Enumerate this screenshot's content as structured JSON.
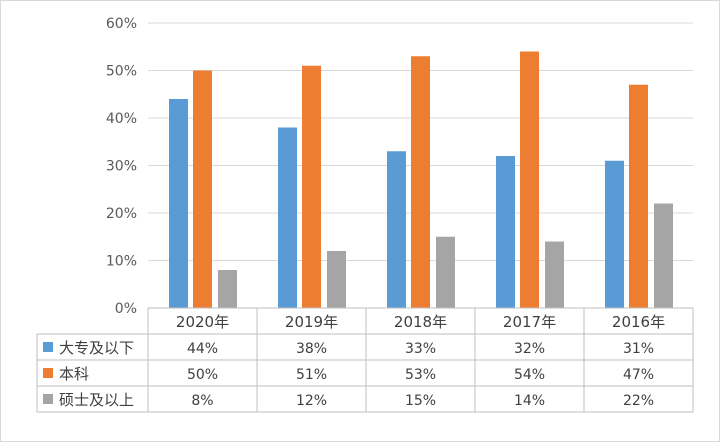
{
  "chart_data": {
    "type": "bar",
    "categories": [
      "2020年",
      "2019年",
      "2018年",
      "2017年",
      "2016年"
    ],
    "series": [
      {
        "name": "大专及以下",
        "color": "#5b9bd5",
        "values": [
          44,
          38,
          33,
          32,
          31
        ],
        "labels": [
          "44%",
          "38%",
          "33%",
          "32%",
          "31%"
        ]
      },
      {
        "name": "本科",
        "color": "#ed7d31",
        "values": [
          50,
          51,
          53,
          54,
          47
        ],
        "labels": [
          "50%",
          "51%",
          "53%",
          "54%",
          "47%"
        ]
      },
      {
        "name": "硕士及以上",
        "color": "#a5a5a5",
        "values": [
          8,
          12,
          15,
          14,
          22
        ],
        "labels": [
          "8%",
          "12%",
          "15%",
          "14%",
          "22%"
        ]
      }
    ],
    "y_ticks": [
      "0%",
      "10%",
      "20%",
      "30%",
      "40%",
      "50%",
      "60%"
    ],
    "ylim": [
      0,
      60
    ],
    "grid": true,
    "legend": "data-table"
  }
}
